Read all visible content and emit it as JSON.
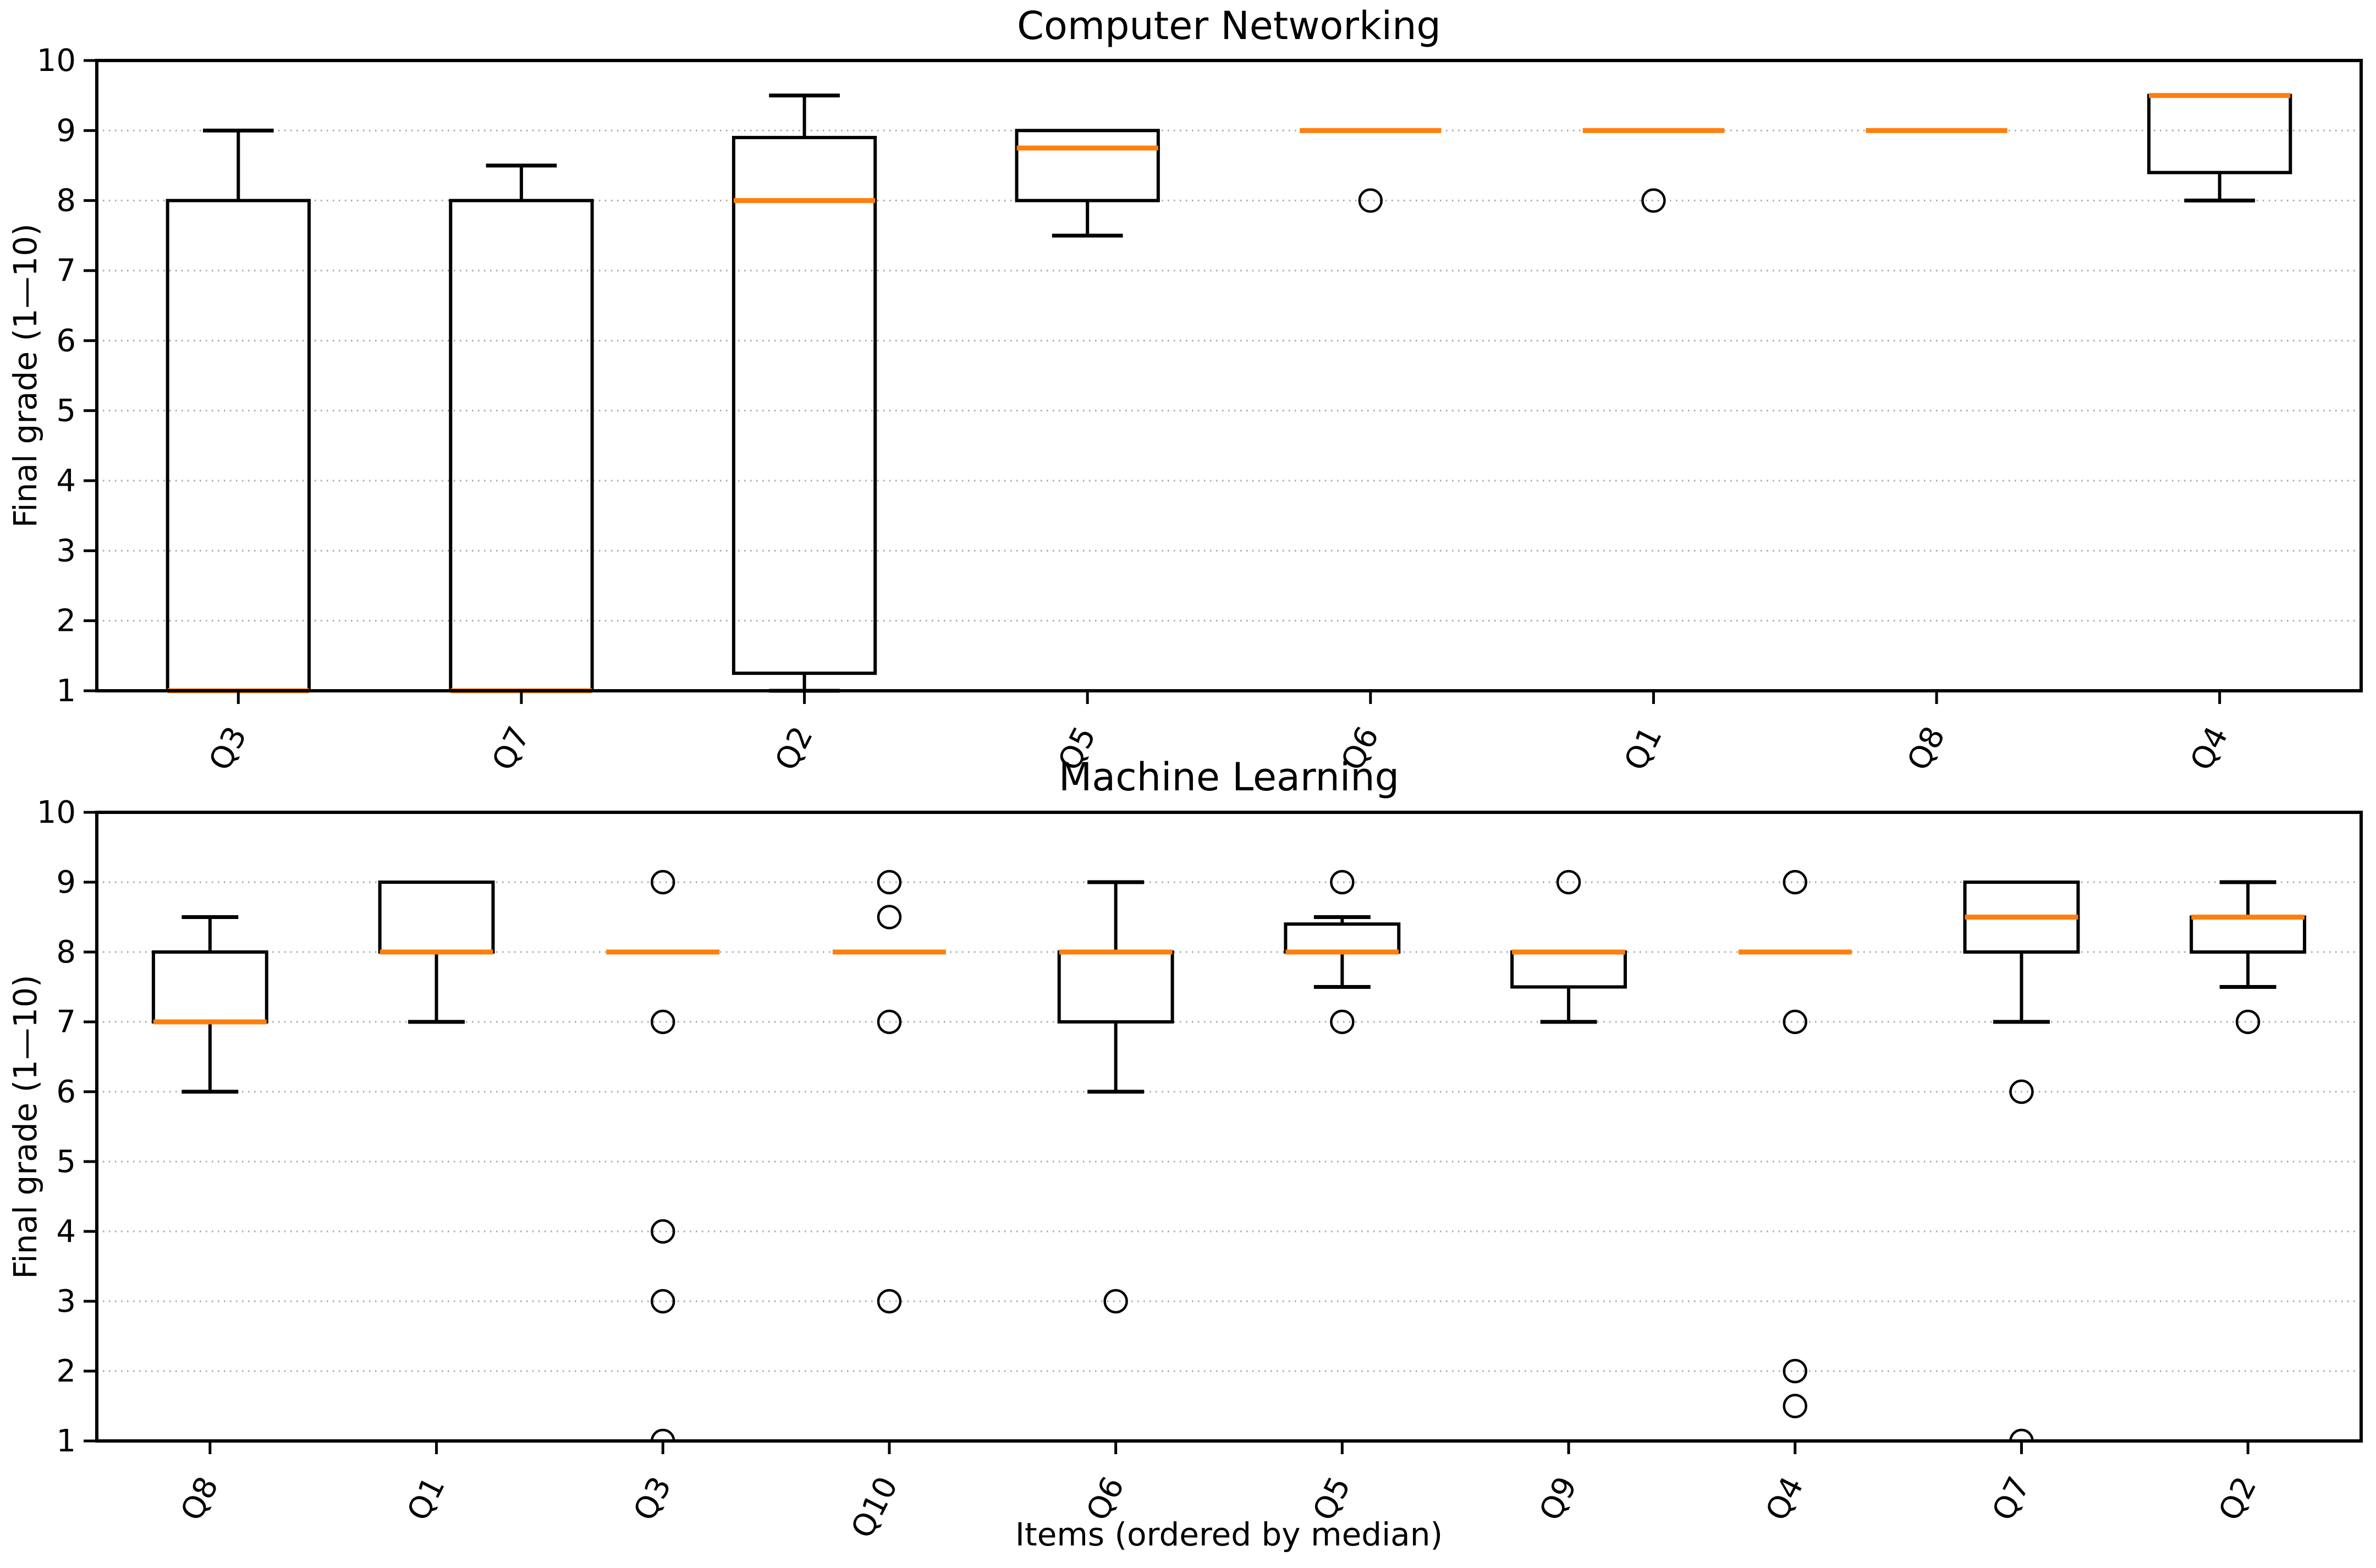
{
  "figure": {
    "background": "#ffffff",
    "grid_style": "horizontal-dotted",
    "grid_color": "#a6a6a6",
    "box_color": "#000000",
    "median_color": "#ff7f0e"
  },
  "chart_data": [
    {
      "type": "box",
      "title": "Computer Networking",
      "ylabel": "Final grade (1—10)",
      "xlabel": "",
      "ylim": [
        1,
        10
      ],
      "yticks": [
        1,
        2,
        3,
        4,
        5,
        6,
        7,
        8,
        9,
        10
      ],
      "legend": "none",
      "grid": "horizontal-dotted",
      "items": [
        {
          "label": "Q3",
          "whislo": 1,
          "q1": 1,
          "med": 1,
          "q3": 8,
          "whishi": 9,
          "outliers": []
        },
        {
          "label": "Q7",
          "whislo": 1,
          "q1": 1,
          "med": 1,
          "q3": 8,
          "whishi": 8.5,
          "outliers": []
        },
        {
          "label": "Q2",
          "whislo": 1,
          "q1": 1.25,
          "med": 8,
          "q3": 8.9,
          "whishi": 9.5,
          "outliers": []
        },
        {
          "label": "Q5",
          "whislo": 7.5,
          "q1": 8,
          "med": 8.75,
          "q3": 9,
          "whishi": 9,
          "outliers": []
        },
        {
          "label": "Q6",
          "whislo": 9,
          "q1": 9,
          "med": 9,
          "q3": 9,
          "whishi": 9,
          "outliers": [
            8
          ]
        },
        {
          "label": "Q1",
          "whislo": 9,
          "q1": 9,
          "med": 9,
          "q3": 9,
          "whishi": 9,
          "outliers": [
            8
          ]
        },
        {
          "label": "Q8",
          "whislo": 9,
          "q1": 9,
          "med": 9,
          "q3": 9,
          "whishi": 9,
          "outliers": []
        },
        {
          "label": "Q4",
          "whislo": 8,
          "q1": 8.4,
          "med": 9.5,
          "q3": 9.5,
          "whishi": 9.5,
          "outliers": []
        }
      ]
    },
    {
      "type": "box",
      "title": "Machine Learning",
      "ylabel": "Final grade (1—10)",
      "xlabel": "Items (ordered by median)",
      "ylim": [
        1,
        10
      ],
      "yticks": [
        1,
        2,
        3,
        4,
        5,
        6,
        7,
        8,
        9,
        10
      ],
      "legend": "none",
      "grid": "horizontal-dotted",
      "items": [
        {
          "label": "Q8",
          "whislo": 6,
          "q1": 7,
          "med": 7,
          "q3": 8,
          "whishi": 8.5,
          "outliers": []
        },
        {
          "label": "Q1",
          "whislo": 7,
          "q1": 8,
          "med": 8,
          "q3": 9,
          "whishi": 9,
          "outliers": []
        },
        {
          "label": "Q3",
          "whislo": 8,
          "q1": 8,
          "med": 8,
          "q3": 8,
          "whishi": 8,
          "outliers": [
            9,
            7,
            4,
            3,
            1
          ]
        },
        {
          "label": "Q10",
          "whislo": 8,
          "q1": 8,
          "med": 8,
          "q3": 8,
          "whishi": 8,
          "outliers": [
            9,
            8.5,
            7,
            3
          ]
        },
        {
          "label": "Q6",
          "whislo": 6,
          "q1": 7,
          "med": 8,
          "q3": 8,
          "whishi": 9,
          "outliers": [
            3
          ]
        },
        {
          "label": "Q5",
          "whislo": 7.5,
          "q1": 8,
          "med": 8,
          "q3": 8.4,
          "whishi": 8.5,
          "outliers": [
            9,
            7
          ]
        },
        {
          "label": "Q9",
          "whislo": 7,
          "q1": 7.5,
          "med": 8,
          "q3": 8,
          "whishi": 8,
          "outliers": [
            9
          ]
        },
        {
          "label": "Q4",
          "whislo": 8,
          "q1": 8,
          "med": 8,
          "q3": 8,
          "whishi": 8,
          "outliers": [
            9,
            7,
            2,
            1.5
          ]
        },
        {
          "label": "Q7",
          "whislo": 7,
          "q1": 8,
          "med": 8.5,
          "q3": 9,
          "whishi": 9,
          "outliers": [
            6,
            1
          ]
        },
        {
          "label": "Q2",
          "whislo": 7.5,
          "q1": 8,
          "med": 8.5,
          "q3": 8.5,
          "whishi": 9,
          "outliers": [
            7
          ]
        }
      ]
    }
  ]
}
